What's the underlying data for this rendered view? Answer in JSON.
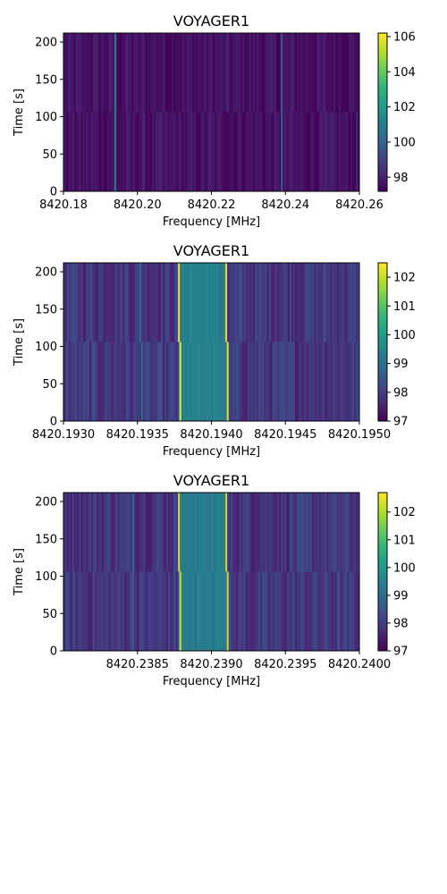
{
  "chart_data": [
    {
      "type": "heatmap",
      "title": "VOYAGER1",
      "xlabel": "Frequency [MHz]",
      "ylabel": "Time [s]",
      "xlim": [
        8420.18,
        8420.26
      ],
      "ylim": [
        0,
        212
      ],
      "xticks": [
        8420.18,
        8420.2,
        8420.22,
        8420.24,
        8420.26
      ],
      "xtick_labels": [
        "8420.18",
        "8420.20",
        "8420.22",
        "8420.24",
        "8420.26"
      ],
      "yticks": [
        0,
        50,
        100,
        150,
        200
      ],
      "ytick_labels": [
        "0",
        "50",
        "100",
        "150",
        "200"
      ],
      "colorbar": {
        "min": 97.2,
        "max": 106.2,
        "ticks": [
          98,
          100,
          102,
          104,
          106
        ],
        "tick_labels": [
          "98",
          "100",
          "102",
          "104",
          "106"
        ],
        "colormap": "viridis"
      },
      "background_level": 97.6,
      "time_split": 106,
      "features": [
        {
          "freq": 8420.194,
          "value": 100.8
        },
        {
          "freq": 8420.239,
          "value": 99.8
        }
      ]
    },
    {
      "type": "heatmap",
      "title": "VOYAGER1",
      "xlabel": "Frequency [MHz]",
      "ylabel": "Time [s]",
      "xlim": [
        8420.193,
        8420.195
      ],
      "ylim": [
        0,
        212
      ],
      "xticks": [
        8420.193,
        8420.1935,
        8420.194,
        8420.1945,
        8420.195
      ],
      "xtick_labels": [
        "8420.1930",
        "8420.1935",
        "8420.1940",
        "8420.1945",
        "8420.1950"
      ],
      "yticks": [
        0,
        50,
        100,
        150,
        200
      ],
      "ytick_labels": [
        "0",
        "50",
        "100",
        "150",
        "200"
      ],
      "colorbar": {
        "min": 97.0,
        "max": 102.5,
        "ticks": [
          97,
          98,
          99,
          100,
          101,
          102
        ],
        "tick_labels": [
          "97",
          "98",
          "99",
          "100",
          "101",
          "102"
        ],
        "colormap": "viridis"
      },
      "background_level": 97.9,
      "time_split": 106,
      "band": {
        "start": 8420.19378,
        "end": 8420.1941,
        "value": 99.4
      },
      "features": [
        {
          "freq_top": 8420.19378,
          "freq_bottom": 8420.19379,
          "value": 102.3
        },
        {
          "freq_top": 8420.1941,
          "freq_bottom": 8420.19411,
          "value": 102.2
        },
        {
          "freq_top": 8420.19352,
          "freq_bottom": 8420.19353,
          "value": 99.0
        }
      ]
    },
    {
      "type": "heatmap",
      "title": "VOYAGER1",
      "xlabel": "Frequency [MHz]",
      "ylabel": "Time [s]",
      "xlim": [
        8420.238,
        8420.24
      ],
      "ylim": [
        0,
        212
      ],
      "xticks": [
        8420.2385,
        8420.239,
        8420.2395,
        8420.24
      ],
      "xtick_labels": [
        "8420.2385",
        "8420.2390",
        "8420.2395",
        "8420.2400"
      ],
      "yticks": [
        0,
        50,
        100,
        150,
        200
      ],
      "ytick_labels": [
        "0",
        "50",
        "100",
        "150",
        "200"
      ],
      "colorbar": {
        "min": 97.0,
        "max": 102.7,
        "ticks": [
          97,
          98,
          99,
          100,
          101,
          102
        ],
        "tick_labels": [
          "97",
          "98",
          "99",
          "100",
          "101",
          "102"
        ],
        "colormap": "viridis"
      },
      "background_level": 97.9,
      "time_split": 106,
      "band": {
        "start": 8420.23878,
        "end": 8420.2391,
        "value": 99.4
      },
      "features": [
        {
          "freq_top": 8420.23878,
          "freq_bottom": 8420.23879,
          "value": 102.3
        },
        {
          "freq_top": 8420.2391,
          "freq_bottom": 8420.23911,
          "value": 102.2
        },
        {
          "freq_top": 8420.23847,
          "freq_bottom": 8420.23847,
          "value": 99.0
        }
      ]
    }
  ]
}
